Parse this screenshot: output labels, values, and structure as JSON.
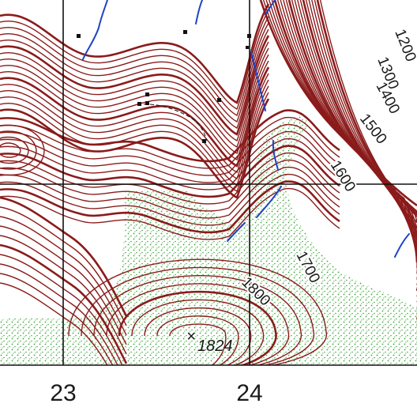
{
  "map": {
    "colors": {
      "contour": "#8b1b1b",
      "vegetation": "#3ea63a",
      "stream": "#1f44c4",
      "grid": "#111111",
      "text": "#1a1a1a",
      "buildings": "#111111"
    },
    "contour_labels": [
      "1200",
      "1300",
      "1400",
      "1500",
      "1600",
      "1700",
      "1800"
    ],
    "spot_elevation": {
      "label": "1824",
      "marker": "×"
    },
    "grid_labels": [
      "23",
      "24"
    ]
  }
}
